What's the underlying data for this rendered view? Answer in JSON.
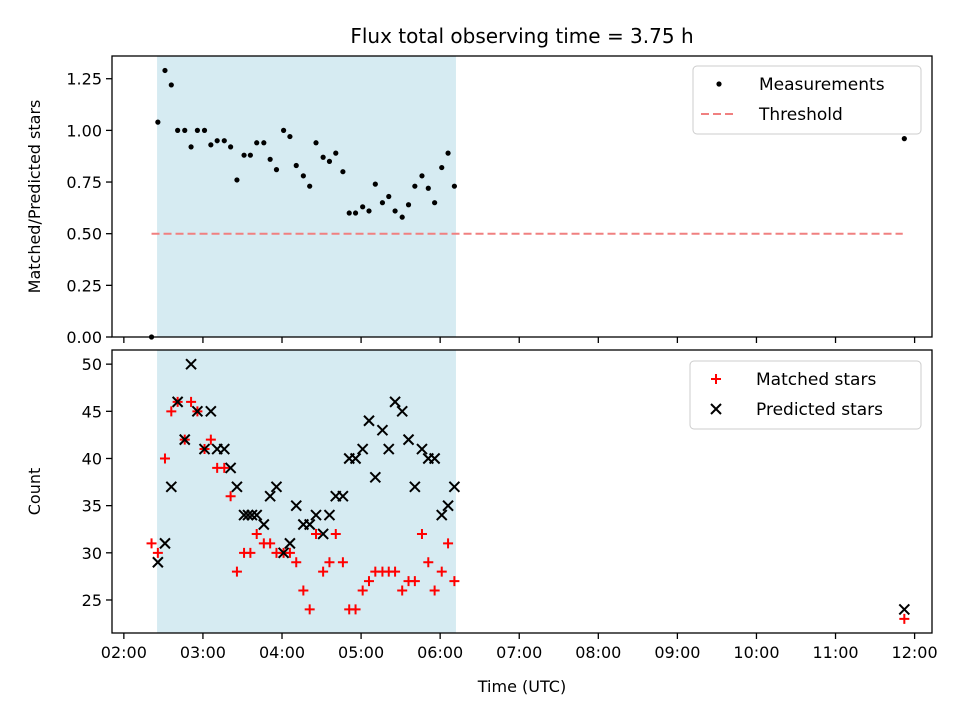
{
  "title": "Flux total observing time = 3.75 h",
  "colors": {
    "shade": "#add8e6",
    "measurement": "#000000",
    "threshold": "#f08080",
    "matched": "#ff0000",
    "predicted": "#000000"
  },
  "chart_data": [
    {
      "type": "scatter",
      "panel": "top",
      "xlabel": "",
      "ylabel": "Matched/Predicted stars",
      "xlim": [
        1.85,
        12.22
      ],
      "ylim": [
        0.0,
        1.36
      ],
      "yticks": [
        0.0,
        0.25,
        0.5,
        0.75,
        1.0,
        1.25
      ],
      "ytick_labels": [
        "0.00",
        "0.25",
        "0.50",
        "0.75",
        "1.00",
        "1.25"
      ],
      "xticks": [
        2,
        3,
        4,
        5,
        6,
        7,
        8,
        9,
        10,
        11,
        12
      ],
      "xtick_labels": [],
      "grid": false,
      "legend_position": "top-right",
      "shaded_region": {
        "x_start": 2.42,
        "x_end": 6.2
      },
      "threshold": {
        "name": "Threshold",
        "value": 0.5,
        "x_start": 2.35,
        "x_end": 11.85
      },
      "series": [
        {
          "name": "Measurements",
          "x": [
            2.35,
            2.43,
            2.52,
            2.6,
            2.68,
            2.77,
            2.85,
            2.93,
            3.02,
            3.1,
            3.18,
            3.27,
            3.35,
            3.43,
            3.52,
            3.6,
            3.68,
            3.77,
            3.85,
            3.93,
            4.02,
            4.1,
            4.18,
            4.27,
            4.35,
            4.43,
            4.52,
            4.6,
            4.68,
            4.77,
            4.85,
            4.93,
            5.02,
            5.1,
            5.18,
            5.27,
            5.35,
            5.43,
            5.52,
            5.6,
            5.68,
            5.77,
            5.85,
            5.93,
            6.02,
            6.1,
            6.18,
            11.87
          ],
          "y": [
            0.0,
            1.04,
            1.29,
            1.22,
            1.0,
            1.0,
            0.92,
            1.0,
            1.0,
            0.93,
            0.95,
            0.95,
            0.92,
            0.76,
            0.88,
            0.88,
            0.94,
            0.94,
            0.86,
            0.81,
            1.0,
            0.97,
            0.83,
            0.78,
            0.73,
            0.94,
            0.87,
            0.85,
            0.89,
            0.8,
            0.6,
            0.6,
            0.63,
            0.61,
            0.74,
            0.65,
            0.68,
            0.61,
            0.58,
            0.64,
            0.73,
            0.78,
            0.72,
            0.65,
            0.82,
            0.89,
            0.73,
            0.96
          ]
        }
      ]
    },
    {
      "type": "scatter",
      "panel": "bottom",
      "xlabel": "Time (UTC)",
      "ylabel": "Count",
      "xlim": [
        1.85,
        12.22
      ],
      "ylim": [
        21.5,
        51.5
      ],
      "yticks": [
        25,
        30,
        35,
        40,
        45,
        50
      ],
      "ytick_labels": [
        "25",
        "30",
        "35",
        "40",
        "45",
        "50"
      ],
      "xticks": [
        2,
        3,
        4,
        5,
        6,
        7,
        8,
        9,
        10,
        11,
        12
      ],
      "xtick_labels": [
        "02:00",
        "03:00",
        "04:00",
        "05:00",
        "06:00",
        "07:00",
        "08:00",
        "09:00",
        "10:00",
        "11:00",
        "12:00"
      ],
      "grid": false,
      "legend_position": "top-right",
      "shaded_region": {
        "x_start": 2.42,
        "x_end": 6.2
      },
      "series": [
        {
          "name": "Matched stars",
          "marker": "+",
          "x": [
            2.35,
            2.43,
            2.52,
            2.6,
            2.68,
            2.77,
            2.85,
            2.93,
            3.02,
            3.1,
            3.18,
            3.27,
            3.35,
            3.43,
            3.52,
            3.6,
            3.68,
            3.77,
            3.85,
            3.93,
            4.02,
            4.1,
            4.18,
            4.27,
            4.35,
            4.43,
            4.52,
            4.6,
            4.68,
            4.77,
            4.85,
            4.93,
            5.02,
            5.1,
            5.18,
            5.27,
            5.35,
            5.43,
            5.52,
            5.6,
            5.68,
            5.77,
            5.85,
            5.93,
            6.02,
            6.1,
            6.18,
            11.87
          ],
          "y": [
            31,
            30,
            40,
            45,
            46,
            42,
            46,
            45,
            41,
            42,
            39,
            39,
            36,
            28,
            30,
            30,
            32,
            31,
            31,
            30,
            30,
            30,
            29,
            26,
            24,
            32,
            28,
            29,
            32,
            29,
            24,
            24,
            26,
            27,
            28,
            28,
            28,
            28,
            26,
            27,
            27,
            32,
            29,
            26,
            28,
            31,
            27,
            23
          ]
        },
        {
          "name": "Predicted stars",
          "marker": "x",
          "x": [
            2.43,
            2.52,
            2.6,
            2.68,
            2.77,
            2.85,
            2.93,
            3.02,
            3.1,
            3.18,
            3.27,
            3.35,
            3.43,
            3.52,
            3.57,
            3.62,
            3.68,
            3.77,
            3.85,
            3.93,
            4.02,
            4.1,
            4.18,
            4.27,
            4.35,
            4.43,
            4.52,
            4.6,
            4.68,
            4.77,
            4.85,
            4.93,
            5.02,
            5.1,
            5.18,
            5.27,
            5.35,
            5.43,
            5.52,
            5.6,
            5.68,
            5.77,
            5.85,
            5.93,
            6.02,
            6.1,
            6.18,
            11.87
          ],
          "y": [
            29,
            31,
            37,
            46,
            42,
            50,
            45,
            41,
            45,
            41,
            41,
            39,
            37,
            34,
            34,
            34,
            34,
            33,
            36,
            37,
            30,
            31,
            35,
            33,
            33,
            34,
            32,
            34,
            36,
            36,
            40,
            40,
            41,
            44,
            38,
            43,
            41,
            46,
            45,
            42,
            37,
            41,
            40,
            40,
            34,
            35,
            37,
            24
          ]
        }
      ]
    }
  ]
}
